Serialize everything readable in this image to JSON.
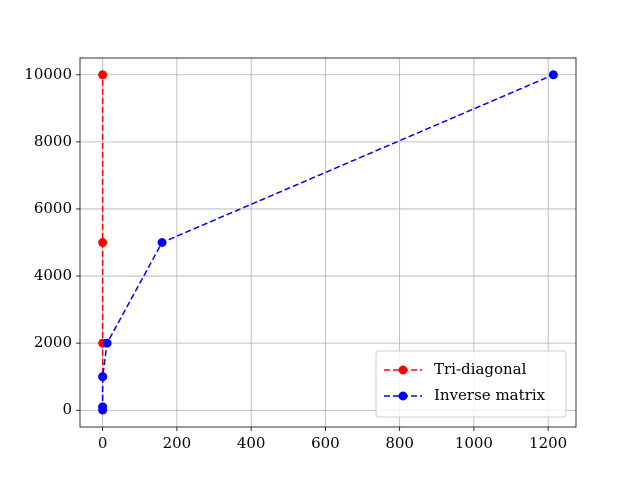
{
  "chart_data": {
    "type": "line",
    "series": [
      {
        "name": "Tri-diagonal",
        "color": "#ff0000",
        "x": [
          0,
          0,
          0,
          0,
          0,
          0
        ],
        "values": [
          10,
          100,
          1000,
          2000,
          5000,
          10000
        ]
      },
      {
        "name": "Inverse matrix",
        "color": "#0000ff",
        "x": [
          0,
          0,
          0,
          12,
          160,
          1214
        ],
        "values": [
          10,
          100,
          1000,
          2000,
          5000,
          10000
        ]
      }
    ],
    "xlim": [
      -61,
      1275
    ],
    "xticks": [
      0,
      200,
      400,
      600,
      800,
      1000,
      1200
    ],
    "ylim": [
      -500,
      10500
    ],
    "yticks": [
      0,
      2000,
      4000,
      6000,
      8000,
      10000
    ],
    "grid": true,
    "legend": "lower right",
    "linestyle": "dashed",
    "marker": "circle"
  }
}
